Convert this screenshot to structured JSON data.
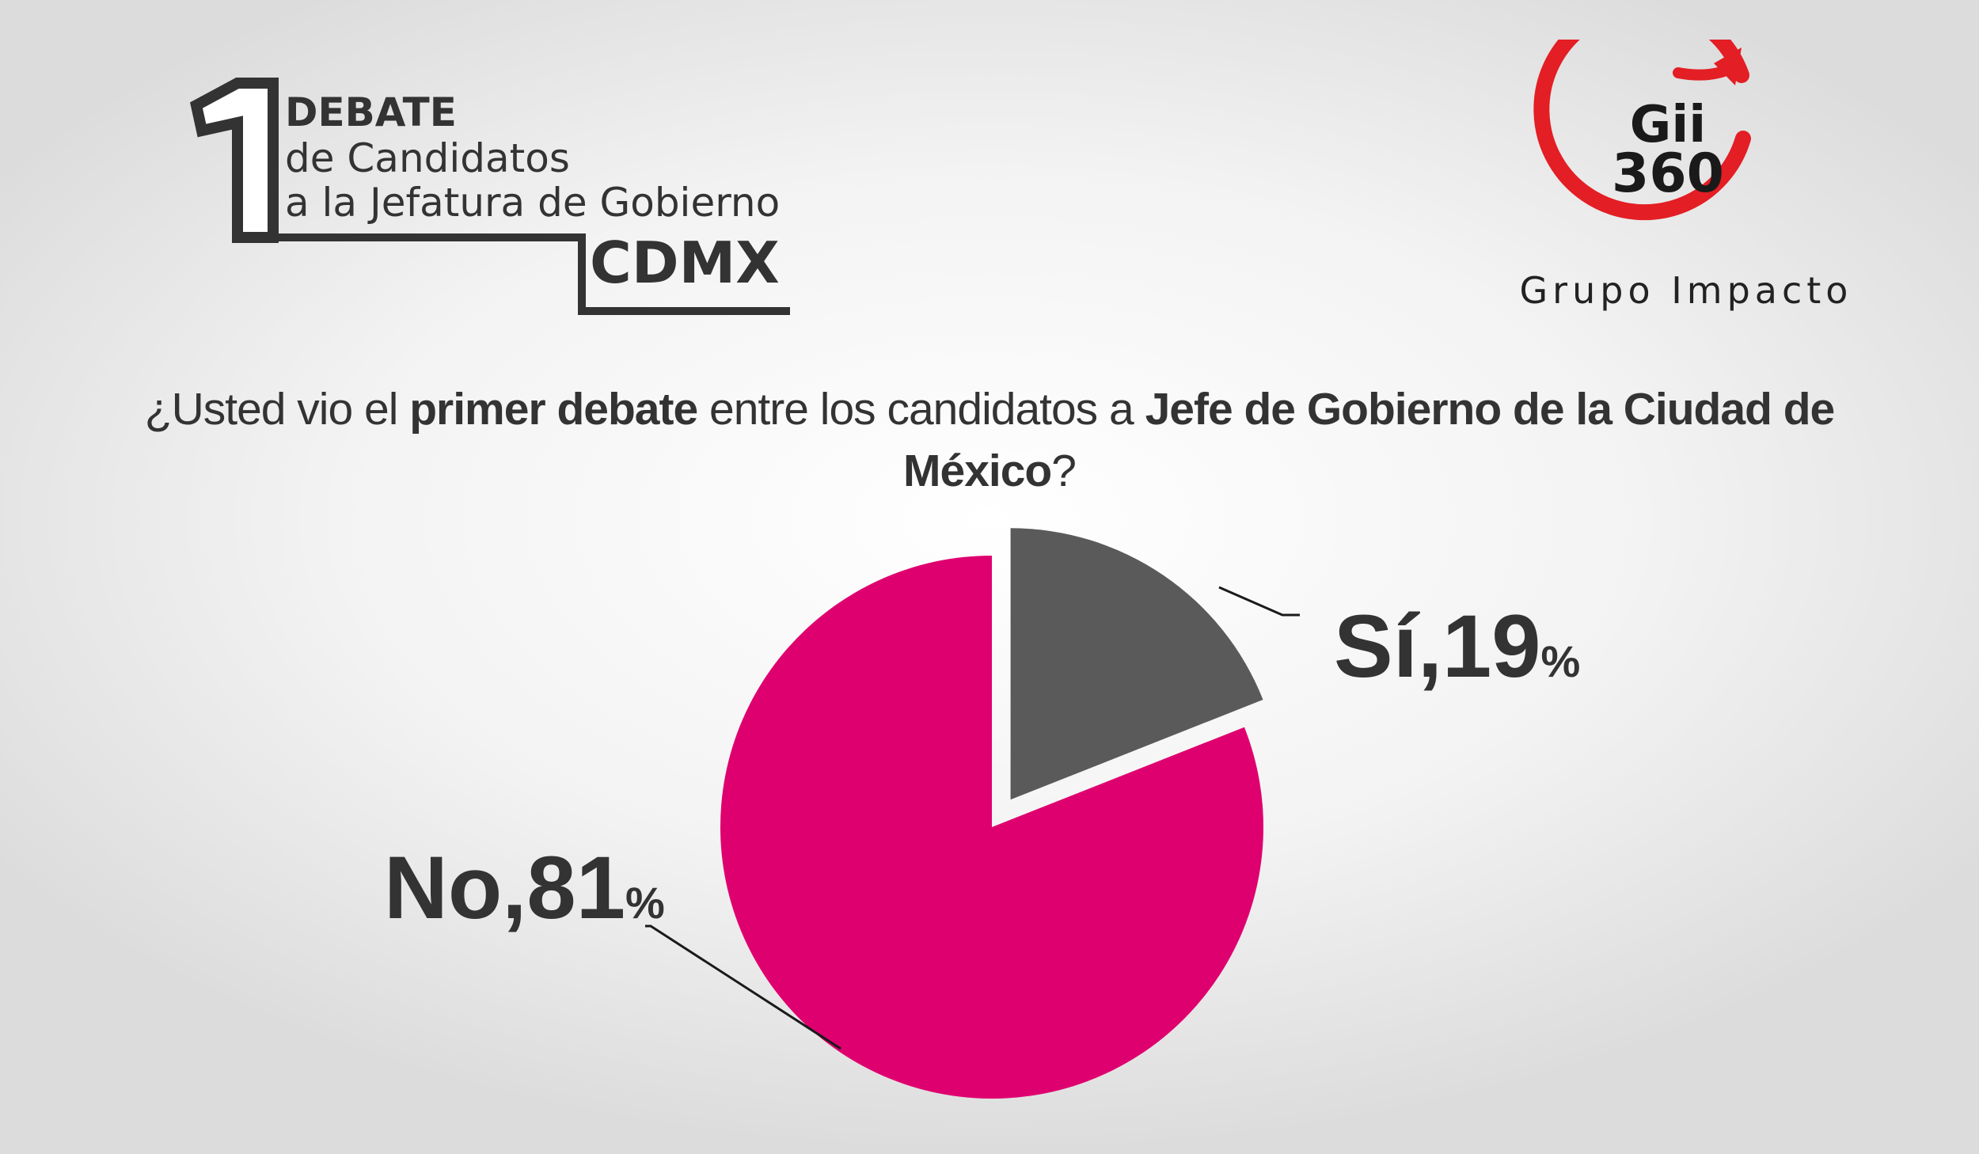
{
  "debate_logo": {
    "number": "1",
    "line1": "DEBATE",
    "line2": "de Candidatos",
    "line3": "a la Jefatura de Gobierno",
    "line4": "CDMX"
  },
  "brand_logo": {
    "line1": "Gii",
    "line2": "360",
    "subtitle": "Grupo Impacto",
    "ring_color": "#e31e24"
  },
  "question": {
    "p1": "¿Usted vio el ",
    "b1": "primer debate",
    "p2": " entre los candidatos a ",
    "b2": "Jefe de Gobierno de la Ciudad de México",
    "p3": "?"
  },
  "chart_data": {
    "type": "pie",
    "title": "",
    "slices": [
      {
        "label": "Sí",
        "value": 19,
        "color": "#5a5a5a",
        "text": "Sí,19",
        "unit": "%"
      },
      {
        "label": "No",
        "value": 81,
        "color": "#df006f",
        "text": "No,81",
        "unit": "%"
      }
    ],
    "exploded": "Sí"
  }
}
